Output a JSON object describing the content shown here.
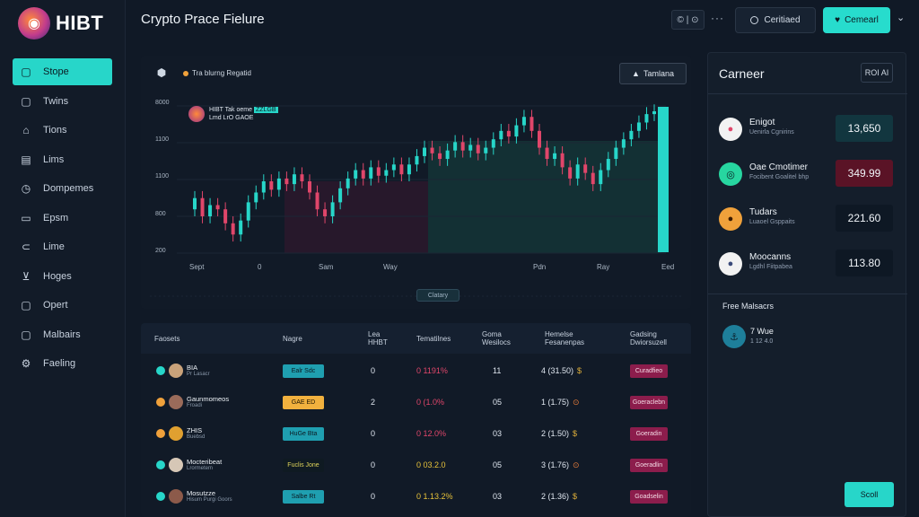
{
  "brand": {
    "name": "HIBT"
  },
  "header": {
    "title": "Crypto Prace Fielure",
    "icon_group": "© | ⊙",
    "more": "···",
    "btn_outline": "Ceritiaed",
    "btn_primary": "Cemearl"
  },
  "sidebar": {
    "items": [
      {
        "label": "Stope",
        "icon": "chat-icon",
        "active": true
      },
      {
        "label": "Twins",
        "icon": "chat-icon"
      },
      {
        "label": "Tions",
        "icon": "bell-icon"
      },
      {
        "label": "Lims",
        "icon": "document-icon"
      },
      {
        "label": "Dompemes",
        "icon": "clock-icon"
      },
      {
        "label": "Epsm",
        "icon": "calendar-icon"
      },
      {
        "label": "Lime",
        "icon": "link-icon"
      },
      {
        "label": "Hoges",
        "icon": "cart-icon"
      },
      {
        "label": "Opert",
        "icon": "chat-icon"
      },
      {
        "label": "Malbairs",
        "icon": "chat-icon"
      },
      {
        "label": "Faeling",
        "icon": "gear-icon"
      }
    ]
  },
  "chart_panel": {
    "tag": "Tra blurng Regatid",
    "button": "Tamlana",
    "legend_line1": "HIBT Tak oeme",
    "legend_hl": "ZZLGB",
    "legend_line2": "Lmd LrO GAOE",
    "pill": "Clatary"
  },
  "chart_data": {
    "type": "candlestick",
    "y_ticks": [
      "8000",
      "1100",
      "1100",
      "800",
      "200"
    ],
    "x_ticks": [
      "Sept",
      "0",
      "Sam",
      "Way",
      "Pdn",
      "Ray",
      "Eed"
    ],
    "colors": {
      "up": "#27d6c9",
      "down": "#e0466a"
    },
    "candles": [
      [
        0.3,
        0.38
      ],
      [
        0.38,
        0.25
      ],
      [
        0.25,
        0.33
      ],
      [
        0.33,
        0.3
      ],
      [
        0.3,
        0.2
      ],
      [
        0.2,
        0.12
      ],
      [
        0.12,
        0.22
      ],
      [
        0.22,
        0.35
      ],
      [
        0.35,
        0.42
      ],
      [
        0.42,
        0.5
      ],
      [
        0.5,
        0.44
      ],
      [
        0.44,
        0.52
      ],
      [
        0.52,
        0.48
      ],
      [
        0.48,
        0.55
      ],
      [
        0.55,
        0.5
      ],
      [
        0.5,
        0.42
      ],
      [
        0.42,
        0.3
      ],
      [
        0.3,
        0.25
      ],
      [
        0.25,
        0.35
      ],
      [
        0.35,
        0.45
      ],
      [
        0.45,
        0.52
      ],
      [
        0.52,
        0.58
      ],
      [
        0.58,
        0.52
      ],
      [
        0.52,
        0.6
      ],
      [
        0.6,
        0.54
      ],
      [
        0.54,
        0.58
      ],
      [
        0.58,
        0.62
      ],
      [
        0.62,
        0.55
      ],
      [
        0.55,
        0.62
      ],
      [
        0.62,
        0.68
      ],
      [
        0.68,
        0.74
      ],
      [
        0.74,
        0.7
      ],
      [
        0.7,
        0.66
      ],
      [
        0.66,
        0.72
      ],
      [
        0.72,
        0.78
      ],
      [
        0.78,
        0.72
      ],
      [
        0.72,
        0.76
      ],
      [
        0.76,
        0.7
      ],
      [
        0.7,
        0.74
      ],
      [
        0.74,
        0.8
      ],
      [
        0.8,
        0.86
      ],
      [
        0.86,
        0.82
      ],
      [
        0.82,
        0.9
      ],
      [
        0.9,
        0.96
      ],
      [
        0.96,
        0.86
      ],
      [
        0.86,
        0.74
      ],
      [
        0.74,
        0.66
      ],
      [
        0.66,
        0.7
      ],
      [
        0.7,
        0.6
      ],
      [
        0.6,
        0.52
      ],
      [
        0.52,
        0.62
      ],
      [
        0.62,
        0.56
      ],
      [
        0.56,
        0.48
      ],
      [
        0.48,
        0.58
      ],
      [
        0.58,
        0.66
      ],
      [
        0.66,
        0.74
      ],
      [
        0.74,
        0.8
      ],
      [
        0.8,
        0.86
      ],
      [
        0.86,
        0.92
      ],
      [
        0.92,
        0.98
      ],
      [
        0.98,
        1.0
      ]
    ]
  },
  "table": {
    "headers": [
      {
        "l1": "Faosets",
        "l2": ""
      },
      {
        "l1": "Nagre",
        "l2": ""
      },
      {
        "l1": "Lea",
        "l2": "HHBT"
      },
      {
        "l1": "Tematilnes",
        "l2": ""
      },
      {
        "l1": "Goma",
        "l2": "Wesilocs"
      },
      {
        "l1": "Hemelse",
        "l2": "Fesanenpas"
      },
      {
        "l1": "Gadsing",
        "l2": "Dwiorsuzell"
      }
    ],
    "rows": [
      {
        "icon_color": "#27d6c9",
        "avatar": "#c9a27a",
        "name": "BIA",
        "sub": "Pr Lasacr",
        "tag": "Ealr Sdc",
        "tag_bg": "#1f9fb0",
        "tag_fg": "#0b1a22",
        "c3": "0",
        "c4": "0 1191%",
        "c4_color": "#e0466a",
        "c5": "11",
        "c6": "4 (31.50)",
        "badge": "$",
        "badge_color": "#e0b03a",
        "act": "Curadfieo"
      },
      {
        "icon_color": "#f0a13b",
        "avatar": "#9a6b5a",
        "name": "Gaunmomeos",
        "sub": "Froadi",
        "tag": "GAE ED",
        "tag_bg": "#f2b13e",
        "tag_fg": "#1a1200",
        "c3": "2",
        "c4": "0 (1.0%",
        "c4_color": "#e0466a",
        "c5": "05",
        "c6": "1 (1.75)",
        "badge": "⊙",
        "badge_color": "#e07a3a",
        "act": "Goeraclebn"
      },
      {
        "icon_color": "#f0a13b",
        "avatar": "#e0a030",
        "name": "ZHIS",
        "sub": "Buebsd",
        "tag": "HuGe Bta",
        "tag_bg": "#1f9fb0",
        "tag_fg": "#0b1a22",
        "c3": "0",
        "c4": "0 12.0%",
        "c4_color": "#e0466a",
        "c5": "03",
        "c6": "2 (1.50)",
        "badge": "$",
        "badge_color": "#e0b03a",
        "act": "Goeradin"
      },
      {
        "icon_color": "#27d6c9",
        "avatar": "#d6c7b6",
        "name": "Mocteribeat",
        "sub": "Lrormetem",
        "tag": "Fuclis Jone",
        "tag_bg": "#0f1a22",
        "tag_fg": "#e0d45a",
        "c3": "0",
        "c4": "0 03.2.0",
        "c4_color": "#e7c23a",
        "c5": "05",
        "c6": "3 (1.76)",
        "badge": "⊙",
        "badge_color": "#e07a3a",
        "act": "Goeradlin"
      },
      {
        "icon_color": "#27d6c9",
        "avatar": "#8c5a4a",
        "name": "Mosutzze",
        "sub": "Hisum Purgi Goors",
        "tag": "Salbe Rt",
        "tag_bg": "#1f9fb0",
        "tag_fg": "#0b1a22",
        "c3": "0",
        "c4": "0 1.13.2%",
        "c4_color": "#e7c23a",
        "c5": "03",
        "c6": "2 (1.36)",
        "badge": "$",
        "badge_color": "#e0b03a",
        "act": "Goadselin"
      }
    ]
  },
  "right_panel": {
    "title": "Carneer",
    "button": "ROI AI",
    "items": [
      {
        "name": "Enigot",
        "sub": "Uenirla Cgnirins",
        "value": "13,650",
        "val_bg": "#12363f",
        "av_bg": "#f2f2f2",
        "av_fg": "#e0466a",
        "icon": "user-icon"
      },
      {
        "name": "Oae Cmotimer",
        "sub": "Focibent Goalitel bhp",
        "value": "349.99",
        "val_bg": "#5a1326",
        "av_bg": "#27d6a0",
        "av_fg": "#0b1a22",
        "icon": "coin-icon"
      },
      {
        "name": "Tudars",
        "sub": "Luaoel Gsppaits",
        "value": "221.60",
        "val_bg": "#0e1824",
        "av_bg": "#f0a13b",
        "av_fg": "#3a1a00",
        "icon": "user-icon"
      },
      {
        "name": "Moocanns",
        "sub": "Lgdhl Fiitpabea",
        "value": "113.80",
        "val_bg": "#0e1824",
        "av_bg": "#f2f2f2",
        "av_fg": "#3a4a7a",
        "icon": "user-icon"
      }
    ],
    "section": "Free Malsacrs",
    "mini_title": "7 Wue",
    "mini_sub": "1 12 4.0",
    "cta": "Scoll"
  }
}
